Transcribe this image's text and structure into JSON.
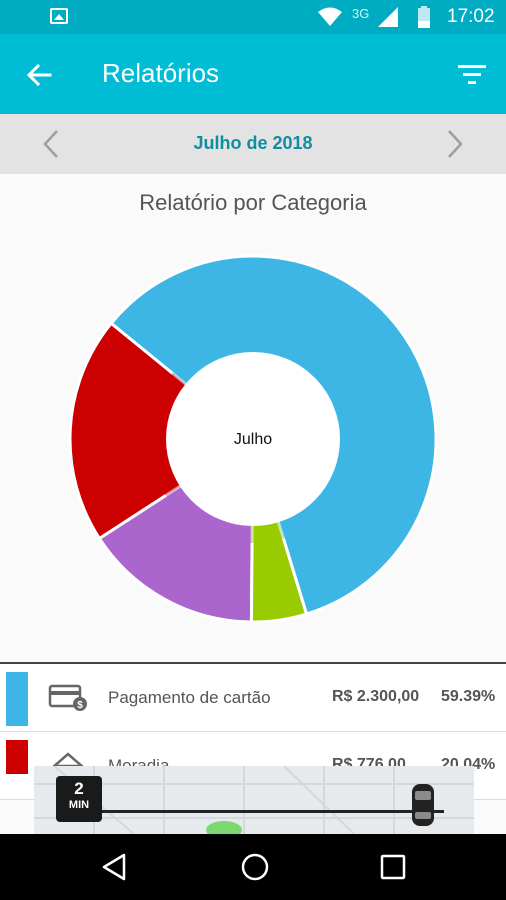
{
  "status_bar": {
    "network": "3G",
    "time": "17:02",
    "icons": [
      "image-icon",
      "wifi-icon",
      "signal-icon",
      "battery-icon"
    ]
  },
  "app_bar": {
    "title": "Relatórios",
    "icons": [
      "back-arrow-icon",
      "filter-icon"
    ]
  },
  "month_nav": {
    "label": "Julho de 2018",
    "icons": [
      "chevron-left-icon",
      "chevron-right-icon"
    ]
  },
  "chart_title": "Relatório por Categoria",
  "chart_data": {
    "type": "pie",
    "center_label": "Julho",
    "slices": [
      {
        "value": 59.39,
        "color": "#3db6e6"
      },
      {
        "value": 20.04,
        "color": "#cc0000"
      },
      {
        "value": 15.71,
        "color": "#aa66cc"
      },
      {
        "value": 4.86,
        "color": "#99cc00"
      }
    ],
    "start_angle_deg": 73
  },
  "categories": [
    {
      "name": "Pagamento de cartão",
      "amount": "R$ 2.300,00",
      "percent": "59.39%",
      "color": "#3db6e6",
      "icon": "credit-card-icon"
    },
    {
      "name": "Moradia",
      "amount": "R$ 776,00",
      "percent": "20.04%",
      "color": "#cc0000",
      "icon": "house-icon"
    }
  ],
  "overlay": {
    "time_value": "2",
    "time_unit": "MIN",
    "icons": [
      "car-icon"
    ]
  },
  "nav_bar": {
    "icons": [
      "nav-back-icon",
      "nav-home-icon",
      "nav-recent-icon"
    ]
  }
}
